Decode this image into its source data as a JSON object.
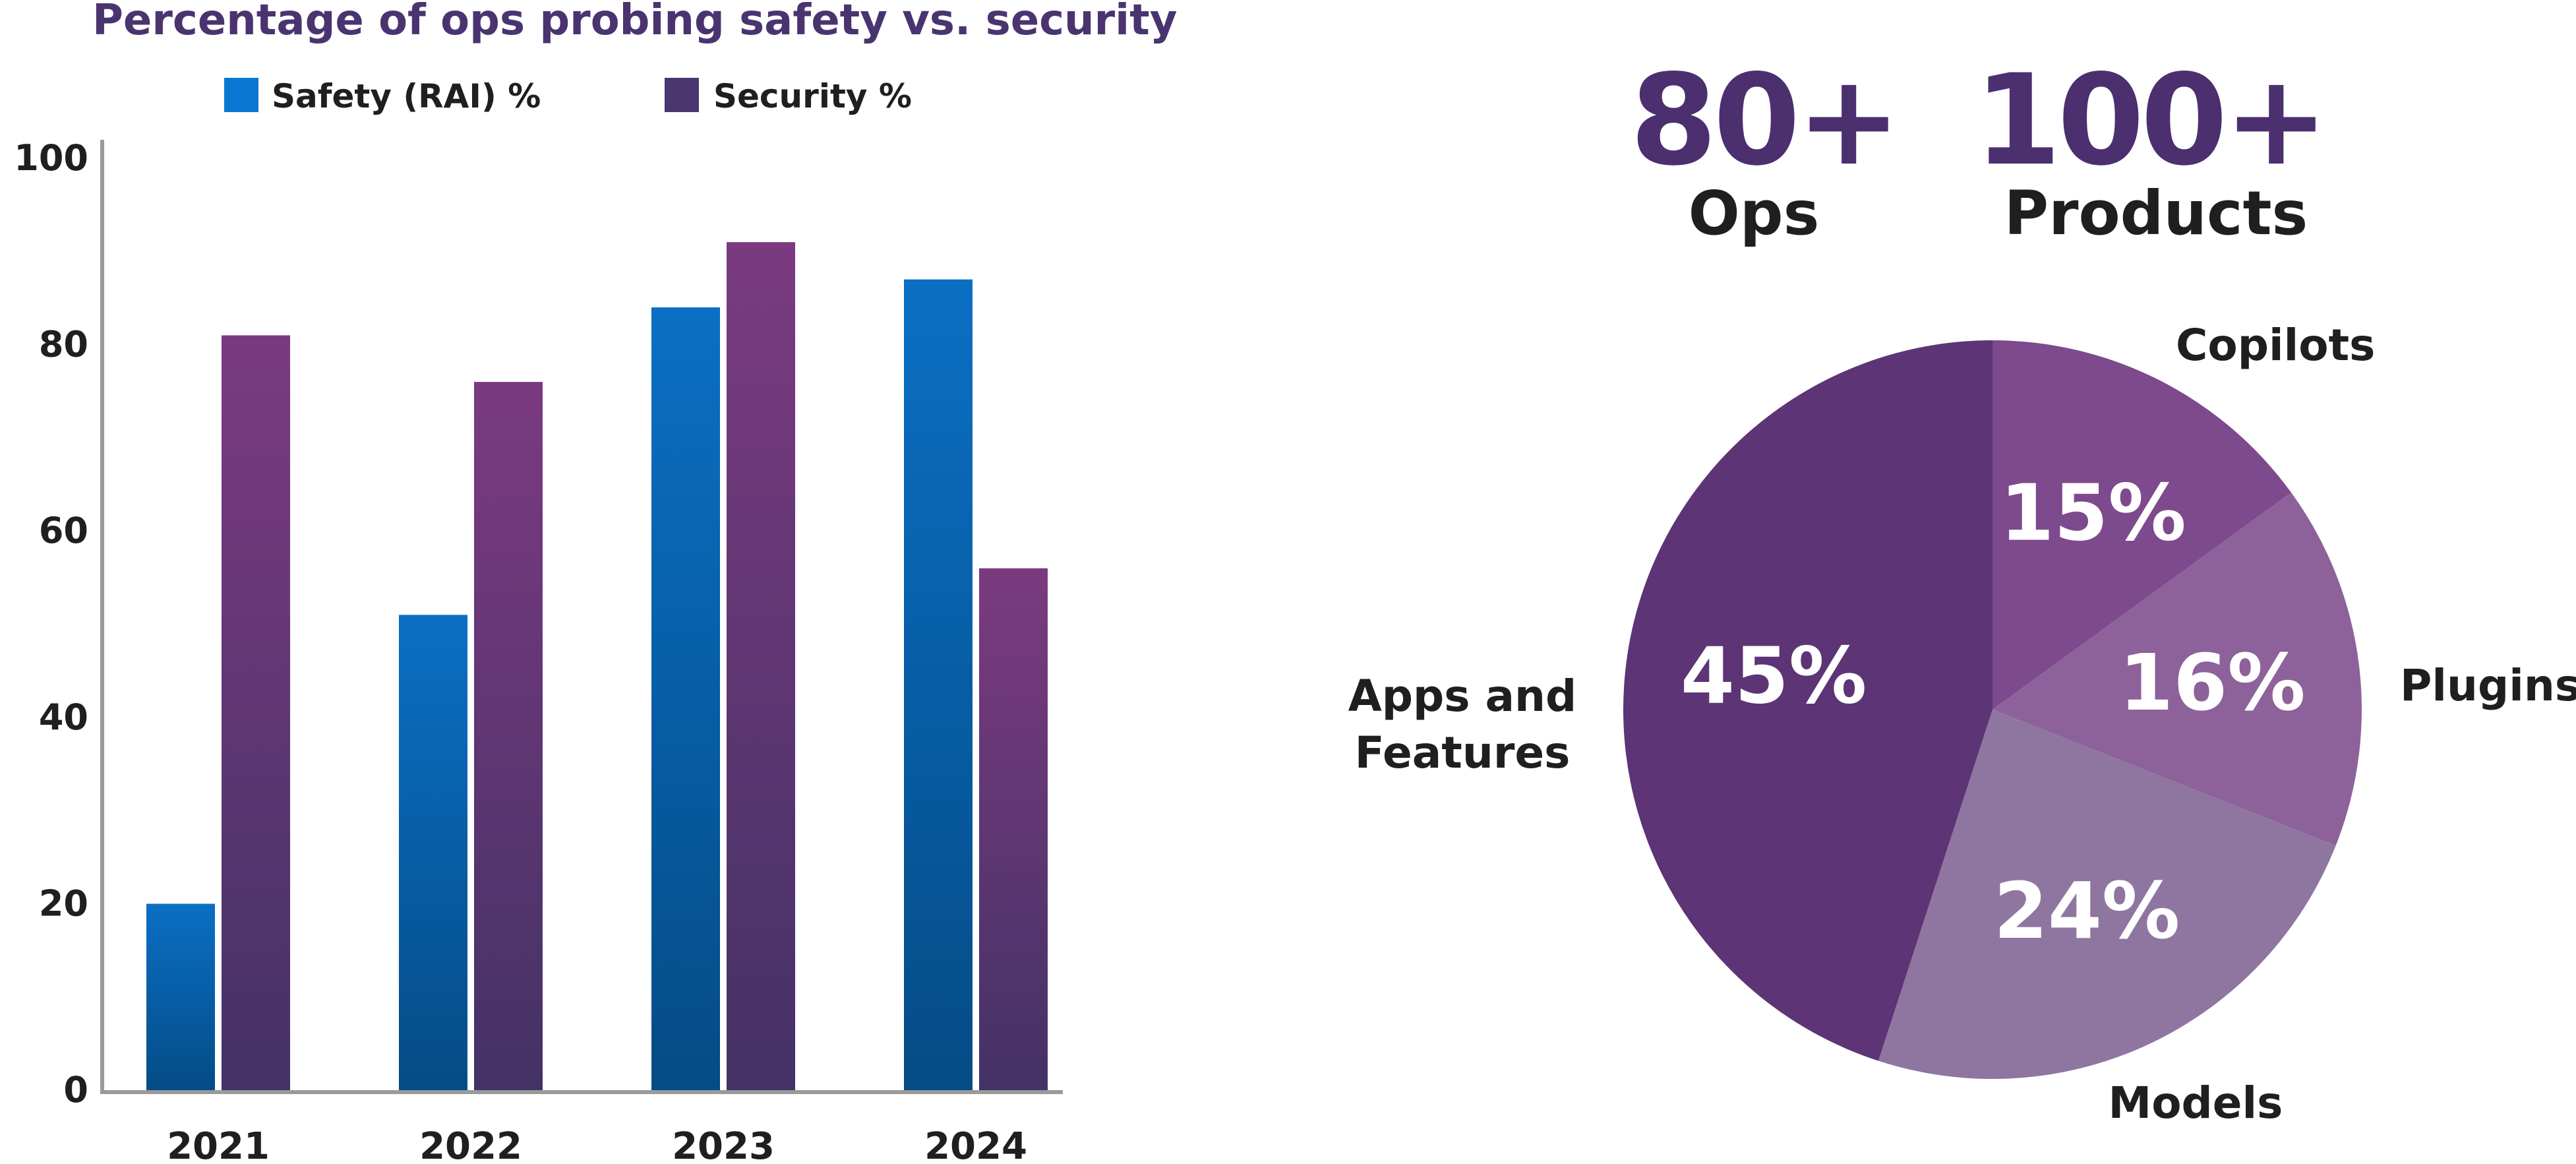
{
  "colors": {
    "safety": "#0a67b5",
    "security": "#5f3a7f",
    "axis": "#999999",
    "stat": "#4b2f6f",
    "slice_copilots": "#7d4a8d",
    "slice_plugins": "#8d6199",
    "slice_models": "#8e76a0",
    "slice_apps": "#5d3475"
  },
  "stats": [
    {
      "value": "80+",
      "label": "Ops"
    },
    {
      "value": "100+",
      "label": "Products"
    }
  ],
  "chart_data": [
    {
      "type": "bar",
      "title": "Percentage of ops probing safety vs. security",
      "categories": [
        "2021",
        "2022",
        "2023",
        "2024"
      ],
      "series": [
        {
          "name": "Safety (RAI) %",
          "values": [
            20,
            51,
            84,
            87
          ]
        },
        {
          "name": "Security %",
          "values": [
            81,
            76,
            91,
            56
          ]
        }
      ],
      "ylim": [
        0,
        100
      ],
      "yticks": [
        "0",
        "20",
        "40",
        "60",
        "80",
        "100"
      ],
      "ytick_values": [
        0,
        20,
        40,
        60,
        80,
        100
      ],
      "xlabel": "",
      "ylabel": "",
      "grid": false,
      "legend": "top"
    },
    {
      "type": "pie",
      "slices": [
        {
          "name": "Copilots",
          "value": 15,
          "label": "15%"
        },
        {
          "name": "Plugins",
          "value": 16,
          "label": "16%"
        },
        {
          "name": "Models",
          "value": 24,
          "label": "24%"
        },
        {
          "name": "Apps and Features",
          "value": 45,
          "label": "45%"
        }
      ],
      "slice_label_lines": [
        [
          "Copilots"
        ],
        [
          "Plugins"
        ],
        [
          "Models"
        ],
        [
          "Apps and",
          "Features"
        ]
      ],
      "start": "12 o'clock",
      "direction": "clockwise"
    }
  ]
}
